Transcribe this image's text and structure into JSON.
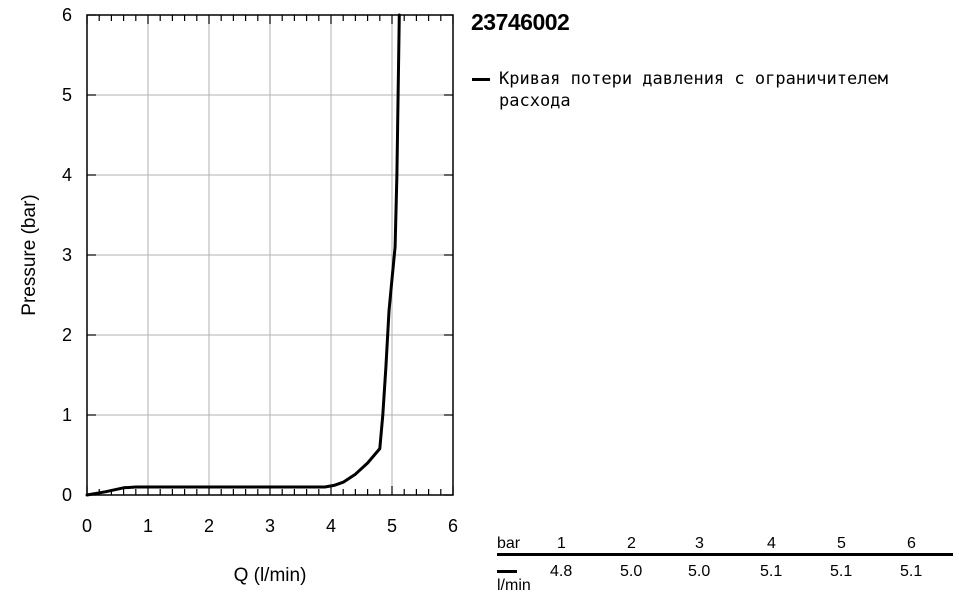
{
  "chart_data": {
    "type": "line",
    "title": "",
    "xlabel": "Q (l/min)",
    "ylabel": "Pressure (bar)",
    "xlim": [
      0,
      6
    ],
    "ylim": [
      0,
      6
    ],
    "xticks": [
      "0",
      "1",
      "2",
      "3",
      "4",
      "5",
      "6"
    ],
    "yticks": [
      "0",
      "1",
      "2",
      "3",
      "4",
      "5",
      "6"
    ],
    "grid": true,
    "series": [
      {
        "name": "Кривая потери давления с ограничителем расхода",
        "color": "#000000",
        "points": [
          [
            0,
            0
          ],
          [
            0.3,
            0.04
          ],
          [
            0.6,
            0.09
          ],
          [
            0.8,
            0.1
          ],
          [
            1.0,
            0.1
          ],
          [
            2.0,
            0.1
          ],
          [
            3.0,
            0.1
          ],
          [
            3.9,
            0.1
          ],
          [
            4.05,
            0.12
          ],
          [
            4.2,
            0.16
          ],
          [
            4.4,
            0.26
          ],
          [
            4.6,
            0.4
          ],
          [
            4.8,
            0.58
          ],
          [
            4.85,
            1.0
          ],
          [
            4.9,
            1.6
          ],
          [
            4.95,
            2.3
          ],
          [
            5.0,
            2.7
          ],
          [
            5.05,
            3.1
          ],
          [
            5.08,
            4.0
          ],
          [
            5.1,
            5.0
          ],
          [
            5.12,
            6.0
          ]
        ]
      }
    ]
  },
  "header": {
    "product_code": "23746002"
  },
  "legend": {
    "label": "Кривая потери давления с ограничителем расхода"
  },
  "table": {
    "unit_top": "bar",
    "unit_bottom": "l/min",
    "pressures": [
      "1",
      "2",
      "3",
      "4",
      "5",
      "6"
    ],
    "flows": [
      "4.8",
      "5.0",
      "5.0",
      "5.1",
      "5.1",
      "5.1"
    ]
  }
}
